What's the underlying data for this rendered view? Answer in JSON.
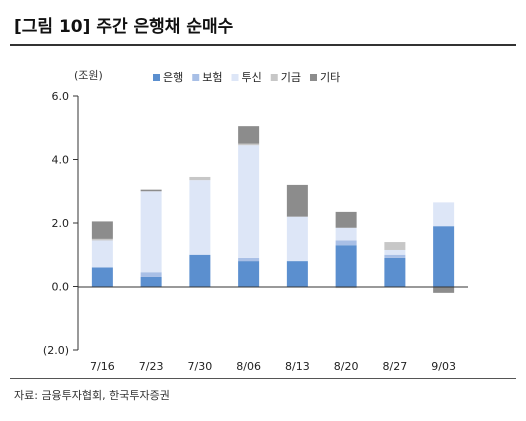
{
  "title": "[그림 10] 주간 은행채 순매수",
  "source": "자료: 금융투자협회, 한국투자증권",
  "chart_data": {
    "type": "bar",
    "stacked": true,
    "unit_label": "(조원)",
    "categories": [
      "7/16",
      "7/23",
      "7/30",
      "8/06",
      "8/13",
      "8/20",
      "8/27",
      "9/03"
    ],
    "y_ticks": [
      "6.0",
      "4.0",
      "2.0",
      "0.0",
      "(2.0)"
    ],
    "ylim": [
      -2.0,
      6.0
    ],
    "grid": false,
    "legend_position": "top",
    "series": [
      {
        "name": "은행",
        "color": "#5b8fcf",
        "values": [
          0.6,
          0.3,
          1.0,
          0.8,
          0.8,
          1.3,
          0.9,
          1.9
        ]
      },
      {
        "name": "보험",
        "color": "#a8bfe6",
        "values": [
          0.0,
          0.15,
          0.0,
          0.1,
          0.0,
          0.15,
          0.1,
          0.0
        ]
      },
      {
        "name": "투신",
        "color": "#dde6f7",
        "values": [
          0.85,
          2.55,
          2.35,
          3.55,
          1.4,
          0.4,
          0.15,
          0.75
        ]
      },
      {
        "name": "기금",
        "color": "#c7c7c7",
        "values": [
          0.05,
          0.0,
          0.1,
          0.05,
          0.0,
          -0.05,
          0.25,
          0.0
        ]
      },
      {
        "name": "기타",
        "color": "#8c8c8c",
        "values": [
          0.55,
          0.05,
          0.0,
          0.55,
          1.0,
          0.5,
          0.0,
          -0.2
        ]
      }
    ]
  }
}
